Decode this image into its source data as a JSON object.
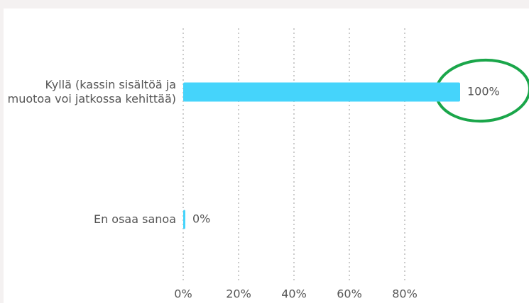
{
  "chart_data": {
    "type": "bar",
    "orientation": "horizontal",
    "categories": [
      "Kyllä (kassin sisältöä ja muotoa voi jatkossa kehittää)",
      "En osaa sanoa"
    ],
    "values": [
      100,
      0
    ],
    "value_labels": [
      "100%",
      "0%"
    ],
    "color": "#45d4fb",
    "xlim": [
      0,
      100
    ],
    "xticks": [
      {
        "value": 0,
        "label": "0%"
      },
      {
        "value": 20,
        "label": "20%"
      },
      {
        "value": 40,
        "label": "40%"
      },
      {
        "value": 60,
        "label": "60%"
      },
      {
        "value": 80,
        "label": "80%"
      }
    ],
    "grid": true
  }
}
